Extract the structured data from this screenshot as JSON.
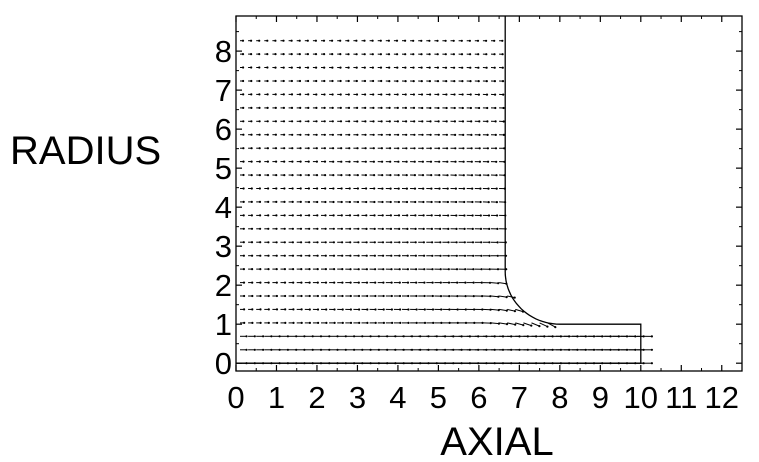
{
  "chart_data": {
    "type": "vector-field",
    "xlabel": "AXIAL",
    "ylabel": "RADIUS",
    "xlim": [
      0,
      12.5
    ],
    "ylim": [
      -0.2,
      8.9
    ],
    "x_ticks": [
      0,
      1,
      2,
      3,
      4,
      5,
      6,
      7,
      8,
      9,
      10,
      11,
      12
    ],
    "y_ticks": [
      0,
      1,
      2,
      3,
      4,
      5,
      6,
      7,
      8
    ],
    "grid": false,
    "domain_boundary": [
      [
        0,
        0
      ],
      [
        10.0,
        0
      ],
      [
        10.0,
        1.0
      ],
      [
        8.0,
        1.0
      ],
      [
        6.65,
        2.35
      ],
      [
        6.65,
        8.9
      ],
      [
        0,
        8.9
      ]
    ],
    "boundary_note": "",
    "vector_color": "#000000"
  }
}
